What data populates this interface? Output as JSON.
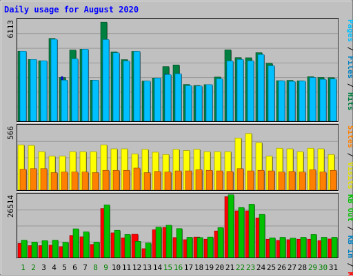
{
  "chart_data": {
    "type": "bar",
    "title": "Daily usage for August 2020",
    "categories": [
      "1",
      "2",
      "3",
      "4",
      "5",
      "6",
      "7",
      "8",
      "9",
      "10",
      "11",
      "12",
      "13",
      "14",
      "15",
      "16",
      "17",
      "18",
      "19",
      "20",
      "21",
      "22",
      "23",
      "24",
      "25",
      "26",
      "27",
      "28",
      "29",
      "30",
      "31"
    ],
    "weekend_days": [
      "1",
      "2",
      "8",
      "9",
      "15",
      "16",
      "22",
      "23",
      "29",
      "30"
    ],
    "panels": [
      {
        "id": "top",
        "scale_label": "6113",
        "ylim": [
          0,
          6113
        ],
        "legend": [
          {
            "text": "Hits",
            "color": "#008040"
          },
          {
            "text": " / ",
            "color": "#000000"
          },
          {
            "text": "Files",
            "color": "#0080c0"
          },
          {
            "text": " / ",
            "color": "#000000"
          },
          {
            "text": "Pages",
            "color": "#00c0ff"
          }
        ],
        "series": [
          {
            "name": "Hits",
            "color": "#008040",
            "values": [
              4230,
              3730,
              3650,
              5000,
              2640,
              4300,
              4350,
              2480,
              5980,
              4190,
              3720,
              4220,
              2430,
              2610,
              3300,
              3400,
              2220,
              2160,
              2210,
              2670,
              4310,
              3840,
              3830,
              4140,
              3500,
              2450,
              2470,
              2440,
              2690,
              2640,
              2630
            ]
          },
          {
            "name": "Files",
            "color": "#0000ff",
            "values": [
              2900,
              2850,
              2700,
              3100,
              2700,
              2650,
              3000,
              2430,
              3600,
              3000,
              2900,
              3050,
              2380,
              2490,
              2850,
              2650,
              2150,
              2100,
              2100,
              2350,
              3300,
              3200,
              3200,
              3000,
              2800,
              2300,
              2350,
              2350,
              2500,
              2450,
              2400
            ]
          },
          {
            "name": "Pages",
            "color": "#00c0ff",
            "values": [
              4230,
              3730,
              3650,
              4950,
              2480,
              3770,
              4350,
              2480,
              4930,
              4130,
              3640,
              4220,
              2430,
              2610,
              2820,
              2870,
              2150,
              2130,
              2210,
              2570,
              3640,
              3730,
              3650,
              4030,
              3350,
              2440,
              2410,
              2430,
              2640,
              2530,
              2550
            ]
          }
        ]
      },
      {
        "id": "middle",
        "scale_label": "566",
        "ylim": [
          0,
          566
        ],
        "legend": [
          {
            "text": "Visits",
            "color": "#e0e000"
          },
          {
            "text": " / ",
            "color": "#000000"
          },
          {
            "text": "Sites",
            "color": "#ff8000"
          }
        ],
        "series": [
          {
            "name": "Visits",
            "color": "#ffff00",
            "values": [
              400,
              395,
              340,
              300,
              300,
              340,
              340,
              340,
              400,
              365,
              365,
              320,
              360,
              335,
              315,
              360,
              350,
              360,
              340,
              340,
              340,
              460,
              500,
              420,
              300,
              370,
              365,
              340,
              370,
              365,
              315
            ]
          },
          {
            "name": "Sites",
            "color": "#ff8000",
            "values": [
              185,
              190,
              190,
              155,
              160,
              160,
              160,
              155,
              175,
              175,
              175,
              195,
              155,
              165,
              160,
              170,
              170,
              180,
              175,
              170,
              165,
              190,
              170,
              175,
              170,
              160,
              165,
              160,
              180,
              160,
              175
            ]
          }
        ]
      },
      {
        "id": "bottom",
        "scale_label": "26514",
        "ylim": [
          0,
          26514
        ],
        "legend": [
          {
            "text": "KB F",
            "color": "#ff0000"
          },
          {
            "text": " / ",
            "color": "#000000"
          },
          {
            "text": "KB In",
            "color": "#0080c0"
          },
          {
            "text": " / ",
            "color": "#000000"
          },
          {
            "text": "KB Out",
            "color": "#00c000"
          }
        ],
        "series": [
          {
            "name": "KB F",
            "color": "#ff0000",
            "values": [
              6000,
              5100,
              5100,
              5300,
              4700,
              9400,
              8800,
              5600,
              20800,
              10500,
              8400,
              9900,
              3800,
              11800,
              12800,
              8500,
              7600,
              8700,
              7800,
              11300,
              25800,
              19800,
              19800,
              16800,
              7800,
              7300,
              7600,
              7800,
              7800,
              7200,
              7900
            ]
          },
          {
            "name": "KB In",
            "color": "#0080c0",
            "values": [
              0,
              0,
              0,
              0,
              0,
              0,
              0,
              0,
              0,
              0,
              0,
              0,
              0,
              0,
              0,
              0,
              0,
              0,
              0,
              0,
              0,
              0,
              0,
              0,
              0,
              0,
              0,
              0,
              0,
              0,
              0
            ]
          },
          {
            "name": "KB Out",
            "color": "#00c000",
            "values": [
              7400,
              6600,
              7200,
              7400,
              6500,
              12200,
              10900,
              6600,
              22300,
              11600,
              9800,
              6900,
              6200,
              12900,
              13700,
              12300,
              8600,
              8500,
              8700,
              12700,
              26600,
              21200,
              22600,
              18300,
              8400,
              8600,
              8300,
              8600,
              9800,
              8600,
              8600
            ]
          }
        ]
      }
    ]
  }
}
